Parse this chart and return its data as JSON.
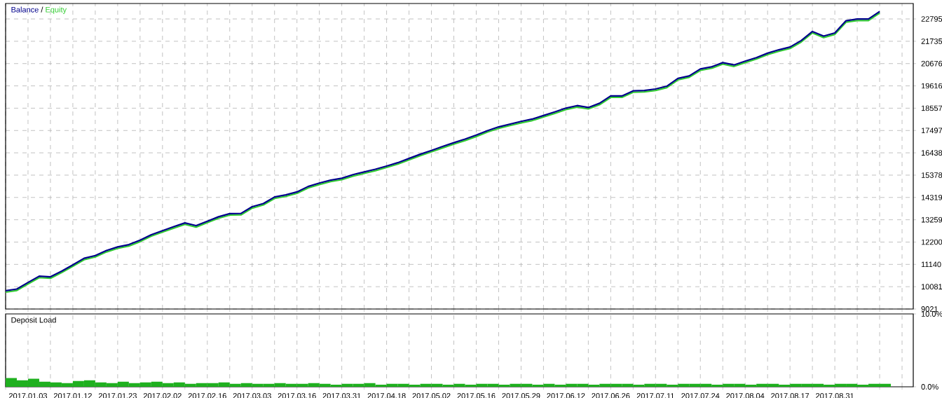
{
  "chart_data": [
    {
      "type": "line",
      "annotations": [
        "/"
      ],
      "legend": "top left",
      "grid": true,
      "tick_labels": "y",
      "categories": [
        null,
        null,
        "2017.01.03",
        null,
        null,
        null,
        "2017.01.12",
        null,
        null,
        null,
        "2017.01.23",
        null,
        null,
        null,
        "2017.02.02",
        null,
        null,
        null,
        "2017.02.16",
        null,
        null,
        null,
        "2017.03.03",
        null,
        null,
        null,
        "2017.03.16",
        null,
        null,
        null,
        "2017.03.31",
        null,
        null,
        null,
        "2017.04.18",
        null,
        null,
        null,
        "2017.05.02",
        null,
        null,
        null,
        "2017.05.16",
        null,
        null,
        null,
        "2017.05.29",
        null,
        null,
        null,
        "2017.06.12",
        null,
        null,
        null,
        "2017.06.26",
        null,
        null,
        null,
        "2017.07.11",
        null,
        null,
        null,
        "2017.07.24",
        null,
        null,
        null,
        "2017.08.04",
        null,
        null,
        null,
        "2017.08.17",
        null,
        null,
        null,
        "2017.08.31",
        null,
        null,
        null,
        null,
        null,
        null,
        null
      ],
      "ylim": [
        9021,
        23528
      ],
      "yticks": [
        9021,
        10081,
        11140,
        12200,
        13259,
        14319,
        15378,
        16438,
        17497,
        18557,
        19616,
        20676,
        21735,
        22795
      ],
      "series": [
        {
          "name": "Equity",
          "color": "#32cd32",
          "values": [
            9820,
            9900,
            10210,
            10510,
            10480,
            10750,
            11050,
            11360,
            11490,
            11730,
            11900,
            12010,
            12220,
            12480,
            12670,
            12860,
            13040,
            12910,
            13120,
            13330,
            13480,
            13490,
            13810,
            13960,
            14270,
            14370,
            14510,
            14770,
            14930,
            15070,
            15160,
            15330,
            15460,
            15590,
            15740,
            15900,
            16100,
            16300,
            16480,
            16670,
            16850,
            17020,
            17210,
            17420,
            17600,
            17730,
            17860,
            17970,
            18140,
            18310,
            18490,
            18610,
            18520,
            18720,
            19070,
            19070,
            19310,
            19330,
            19400,
            19530,
            19900,
            20020,
            20350,
            20450,
            20650,
            20540,
            20720,
            20890,
            21100,
            21260,
            21390,
            21700,
            22130,
            21910,
            22060,
            22640,
            22720,
            22720,
            23080,
            null,
            null,
            null
          ]
        },
        {
          "name": "Balance",
          "color": "#00008b",
          "values": [
            9890,
            9970,
            10280,
            10580,
            10550,
            10820,
            11120,
            11430,
            11560,
            11800,
            11970,
            12080,
            12290,
            12550,
            12740,
            12930,
            13110,
            12980,
            13190,
            13400,
            13550,
            13560,
            13880,
            14030,
            14340,
            14440,
            14580,
            14840,
            15000,
            15140,
            15230,
            15400,
            15530,
            15660,
            15810,
            15970,
            16170,
            16370,
            16550,
            16740,
            16920,
            17090,
            17280,
            17490,
            17670,
            17800,
            17930,
            18040,
            18210,
            18380,
            18560,
            18680,
            18590,
            18790,
            19140,
            19140,
            19380,
            19400,
            19470,
            19600,
            19970,
            20090,
            20420,
            20520,
            20720,
            20610,
            20790,
            20960,
            21170,
            21330,
            21460,
            21770,
            22200,
            21980,
            22130,
            22710,
            22790,
            22790,
            23150,
            null,
            null,
            null
          ]
        }
      ]
    },
    {
      "type": "bar",
      "title": "Deposit Load",
      "grid": "x",
      "categories": [
        null,
        null,
        "2017.01.03",
        null,
        null,
        null,
        "2017.01.12",
        null,
        null,
        null,
        "2017.01.23",
        null,
        null,
        null,
        "2017.02.02",
        null,
        null,
        null,
        "2017.02.16",
        null,
        null,
        null,
        "2017.03.03",
        null,
        null,
        null,
        "2017.03.16",
        null,
        null,
        null,
        "2017.03.31",
        null,
        null,
        null,
        "2017.04.18",
        null,
        null,
        null,
        "2017.05.02",
        null,
        null,
        null,
        "2017.05.16",
        null,
        null,
        null,
        "2017.05.29",
        null,
        null,
        null,
        "2017.06.12",
        null,
        null,
        null,
        "2017.06.26",
        null,
        null,
        null,
        "2017.07.11",
        null,
        null,
        null,
        "2017.07.24",
        null,
        null,
        null,
        "2017.08.04",
        null,
        null,
        null,
        "2017.08.17",
        null,
        null,
        null,
        "2017.08.31",
        null,
        null,
        null,
        null,
        null,
        null,
        null
      ],
      "ylim": [
        0,
        10
      ],
      "yticks": [
        {
          "value": 0,
          "label": "0.0%"
        },
        {
          "value": 10,
          "label": "10.0%"
        }
      ],
      "color": "#1fb01f",
      "values": [
        1.2,
        0.9,
        1.1,
        0.7,
        0.6,
        0.5,
        0.8,
        0.9,
        0.6,
        0.5,
        0.7,
        0.5,
        0.6,
        0.7,
        0.5,
        0.6,
        0.4,
        0.5,
        0.5,
        0.6,
        0.4,
        0.5,
        0.4,
        0.4,
        0.5,
        0.4,
        0.4,
        0.5,
        0.4,
        0.3,
        0.4,
        0.4,
        0.5,
        0.3,
        0.4,
        0.4,
        0.3,
        0.4,
        0.4,
        0.3,
        0.4,
        0.3,
        0.4,
        0.4,
        0.3,
        0.4,
        0.4,
        0.3,
        0.4,
        0.3,
        0.4,
        0.4,
        0.3,
        0.4,
        0.4,
        0.4,
        0.3,
        0.4,
        0.4,
        0.3,
        0.4,
        0.4,
        0.4,
        0.3,
        0.4,
        0.4,
        0.3,
        0.4,
        0.4,
        0.3,
        0.4,
        0.4,
        0.4,
        0.3,
        0.4,
        0.4,
        0.3,
        0.4,
        0.4,
        null,
        null,
        null
      ]
    }
  ]
}
